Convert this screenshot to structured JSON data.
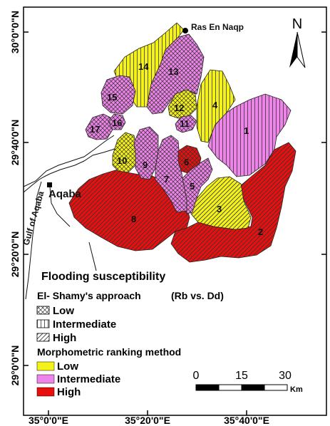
{
  "axes": {
    "y_labels": [
      "30°0\"0\"N",
      "29°40'0\"N",
      "29°20'0\"N",
      "29°0'0\"N"
    ],
    "x_labels": [
      "35°0'0\"E",
      "35°20'0\"E",
      "35°40'0\"E"
    ]
  },
  "places": {
    "ras_en_naqp": "Ras En Naqp",
    "aqaba": "Aqaba",
    "gulf": "Gulf of Aqaba"
  },
  "north": "N",
  "basins": {
    "b1": "1",
    "b2": "2",
    "b3": "3",
    "b4": "4",
    "b5": "5",
    "b6": "6",
    "b7": "7",
    "b8": "8",
    "b9": "9",
    "b10": "10",
    "b11": "11",
    "b12": "12",
    "b13": "13",
    "b14": "14",
    "b15": "15",
    "b16": "16",
    "b17": "17"
  },
  "legend": {
    "title": "Flooding susceptibility",
    "approach": "El- Shamy's approach",
    "approach_formula": "(Rb vs. Dd)",
    "hatch_low": "Low",
    "hatch_intermediate": "Intermediate",
    "hatch_high": "High",
    "morph_title": "Morphometric ranking method",
    "morph_low": "Low",
    "morph_intermediate": "Intermediate",
    "morph_high": "High"
  },
  "scale": {
    "t0": "0",
    "t1": "15",
    "t2": "30",
    "unit": "Km"
  },
  "colors": {
    "low": "#f5f21a",
    "intermediate": "#ee83e9",
    "high": "#e80f0f"
  }
}
